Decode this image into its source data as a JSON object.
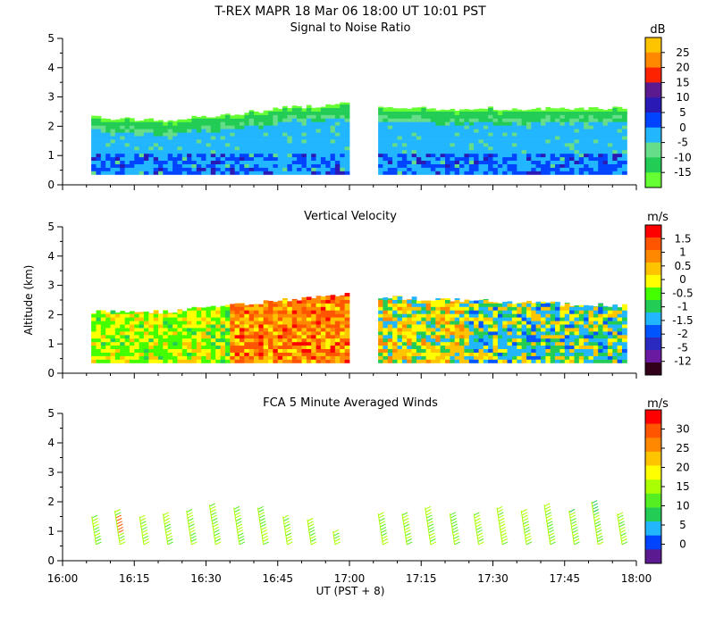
{
  "header": {
    "title": "T-REX   MAPR 18 Mar 06   18:00 UT   10:01   PST"
  },
  "colors": {
    "snr": [
      "#66ff33",
      "#22cc55",
      "#66dd88",
      "#22b6ff",
      "#0044ff",
      "#2a1ab5",
      "#5b1a90",
      "#ff2200",
      "#ff8800",
      "#ffc400"
    ],
    "vel": [
      "#33001a",
      "#6a1aa0",
      "#2a2ac0",
      "#0055ff",
      "#22b6ff",
      "#22cc55",
      "#44ff00",
      "#ffff00",
      "#ffc400",
      "#ff8800",
      "#ff5500",
      "#ff0000"
    ],
    "winds": [
      "#5b1a90",
      "#0044ff",
      "#22b6ff",
      "#22cc55",
      "#55ee22",
      "#aaff00",
      "#ffff00",
      "#ffc400",
      "#ff8800",
      "#ff5500",
      "#ff0000"
    ]
  },
  "chart_data": [
    {
      "type": "heatmap",
      "title": "Signal to Noise Ratio",
      "xlabel": "",
      "ylabel": "",
      "xlim": [
        "16:00",
        "18:00"
      ],
      "ylim": [
        0,
        5
      ],
      "y_ticks": [
        "0",
        "1",
        "2",
        "3",
        "4",
        "5"
      ],
      "x_ticks": [
        "16:00",
        "16:15",
        "16:30",
        "16:45",
        "17:00",
        "17:15",
        "17:30",
        "17:45",
        "18:00"
      ],
      "colorbar": {
        "unit": "dB",
        "labels": [
          "25",
          "20",
          "15",
          "10",
          "5",
          "0",
          "-5",
          "-10",
          "-15"
        ]
      },
      "data_gap": [
        "17:00",
        "17:06"
      ],
      "echo_top_km": {
        "times": [
          "16:06",
          "16:20",
          "16:35",
          "16:45",
          "17:00",
          "17:06",
          "17:20",
          "17:40",
          "17:58"
        ],
        "values": [
          2.3,
          2.2,
          2.4,
          2.6,
          2.8,
          2.7,
          2.6,
          2.6,
          2.6
        ]
      },
      "echo_base_km": 0.35
    },
    {
      "type": "heatmap",
      "title": "Vertical Velocity",
      "xlabel": "",
      "ylabel": "Altitude  (km)",
      "xlim": [
        "16:00",
        "18:00"
      ],
      "ylim": [
        0,
        5
      ],
      "y_ticks": [
        "0",
        "1",
        "2",
        "3",
        "4",
        "5"
      ],
      "x_ticks": [
        "16:00",
        "16:15",
        "16:30",
        "16:45",
        "17:00",
        "17:15",
        "17:30",
        "17:45",
        "18:00"
      ],
      "colorbar": {
        "unit": "m/s",
        "labels": [
          "1.5",
          "1",
          "0.5",
          "0",
          "-0.5",
          "-1",
          "-1.5",
          "-2",
          "-5",
          "-12"
        ]
      },
      "data_gap": [
        "17:00",
        "17:06"
      ],
      "echo_top_km": {
        "times": [
          "16:06",
          "16:20",
          "16:35",
          "16:45",
          "17:00",
          "17:06",
          "17:20",
          "17:40",
          "17:58"
        ],
        "values": [
          2.1,
          2.1,
          2.3,
          2.5,
          2.7,
          2.6,
          2.5,
          2.4,
          2.3
        ]
      },
      "echo_base_km": 0.35
    },
    {
      "type": "scatter",
      "title": "FCA 5 Minute Averaged Winds",
      "xlabel": "UT  (PST + 8)",
      "ylabel": "",
      "xlim": [
        "16:00",
        "18:00"
      ],
      "ylim": [
        0,
        5
      ],
      "y_ticks": [
        "0",
        "1",
        "2",
        "3",
        "4",
        "5"
      ],
      "x_ticks": [
        "16:00",
        "16:15",
        "16:30",
        "16:45",
        "17:00",
        "17:15",
        "17:30",
        "17:45",
        "18:00"
      ],
      "colorbar": {
        "unit": "m/s",
        "labels": [
          "30",
          "25",
          "20",
          "15",
          "10",
          "5",
          "0"
        ]
      },
      "profile_times_min": [
        7,
        12,
        17,
        22,
        27,
        32,
        37,
        42,
        47,
        52,
        57,
        67,
        72,
        77,
        82,
        87,
        92,
        97,
        102,
        107,
        112,
        117
      ],
      "profile_top_km": [
        1.5,
        1.7,
        1.5,
        1.6,
        1.7,
        1.9,
        1.8,
        1.8,
        1.5,
        1.4,
        1.0,
        1.6,
        1.6,
        1.8,
        1.6,
        1.6,
        1.8,
        1.7,
        1.9,
        1.7,
        2.0,
        1.6
      ],
      "profile_base_km": 0.55
    }
  ]
}
